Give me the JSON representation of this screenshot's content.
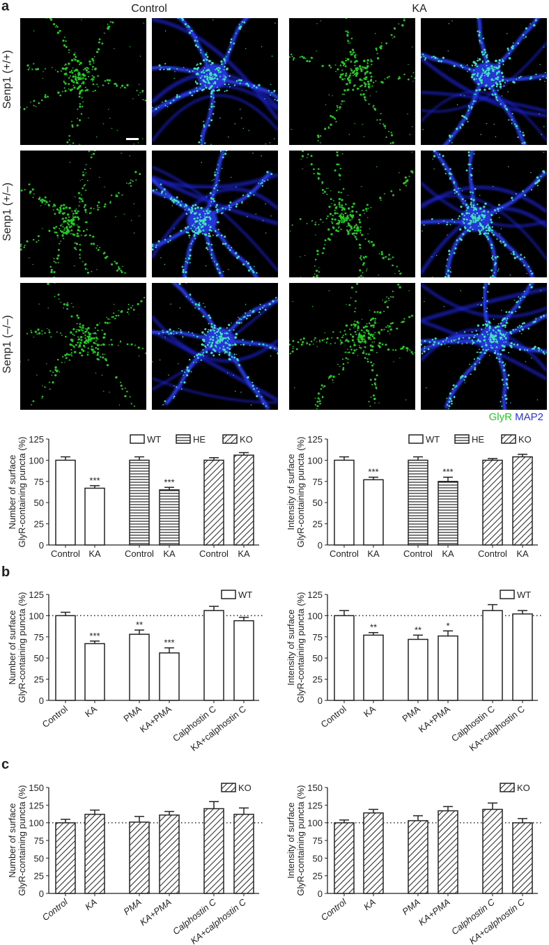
{
  "panel_labels": {
    "a": "a",
    "b": "b",
    "c": "c"
  },
  "column_headers": [
    "Control",
    "KA"
  ],
  "row_labels": [
    "Senp1 (+/+)",
    "Senp1 (+/–)",
    "Senp1 (–/–)"
  ],
  "channel_legend": {
    "glyr": "GlyR",
    "map2": "MAP2",
    "glyr_color": "#22cc22",
    "map2_color": "#2233ff"
  },
  "chart_data": [
    {
      "type": "bar",
      "panel": "a",
      "ylabel": [
        "Number of surface",
        "GlyR-containing puncta (%)"
      ],
      "ylim": [
        0,
        125
      ],
      "yticks": [
        0,
        25,
        50,
        75,
        100,
        125
      ],
      "categories": [
        "Control",
        "KA",
        "Control",
        "KA",
        "Control",
        "KA"
      ],
      "groups": [
        "WT",
        "WT",
        "HE",
        "HE",
        "KO",
        "KO"
      ],
      "values": [
        100,
        67,
        100,
        65,
        100,
        106
      ],
      "errors": [
        4,
        3,
        4,
        3,
        3,
        3
      ],
      "significance": [
        "",
        "***",
        "",
        "***",
        "",
        ""
      ],
      "legend": [
        "WT",
        "HE",
        "KO"
      ],
      "reference_line": null
    },
    {
      "type": "bar",
      "panel": "a",
      "ylabel": [
        "Intensity of surface",
        "GlyR-containing puncta (%)"
      ],
      "ylim": [
        0,
        125
      ],
      "yticks": [
        0,
        25,
        50,
        75,
        100,
        125
      ],
      "categories": [
        "Control",
        "KA",
        "Control",
        "KA",
        "Control",
        "KA"
      ],
      "groups": [
        "WT",
        "WT",
        "HE",
        "HE",
        "KO",
        "KO"
      ],
      "values": [
        100,
        77,
        100,
        75,
        100,
        104
      ],
      "errors": [
        4,
        3,
        4,
        5,
        2,
        3
      ],
      "significance": [
        "",
        "***",
        "",
        "***",
        "",
        ""
      ],
      "legend": [
        "WT",
        "HE",
        "KO"
      ],
      "reference_line": null
    },
    {
      "type": "bar",
      "panel": "b",
      "ylabel": [
        "Number of surface",
        "GlyR-containing puncta (%)"
      ],
      "ylim": [
        0,
        125
      ],
      "yticks": [
        0,
        25,
        50,
        75,
        100,
        125
      ],
      "categories": [
        "Control",
        "KA",
        "PMA",
        "KA+PMA",
        "Calphostin C",
        "KA+calphostin C"
      ],
      "groups": [
        "WT",
        "WT",
        "WT",
        "WT",
        "WT",
        "WT"
      ],
      "values": [
        100,
        67,
        78,
        56,
        106,
        94
      ],
      "errors": [
        4,
        3,
        5,
        6,
        5,
        4
      ],
      "significance": [
        "",
        "***",
        "**",
        "***",
        "",
        ""
      ],
      "legend": [
        "WT"
      ],
      "reference_line": 100
    },
    {
      "type": "bar",
      "panel": "b",
      "ylabel": [
        "Intensity of surface",
        "GlyR-containing puncta (%)"
      ],
      "ylim": [
        0,
        125
      ],
      "yticks": [
        0,
        25,
        50,
        75,
        100,
        125
      ],
      "categories": [
        "Control",
        "KA",
        "PMA",
        "KA+PMA",
        "Calphostin C",
        "KA+calphostin C"
      ],
      "groups": [
        "WT",
        "WT",
        "WT",
        "WT",
        "WT",
        "WT"
      ],
      "values": [
        100,
        77,
        72,
        76,
        106,
        102
      ],
      "errors": [
        6,
        3,
        5,
        6,
        7,
        4
      ],
      "significance": [
        "",
        "**",
        "**",
        "*",
        "",
        ""
      ],
      "legend": [
        "WT"
      ],
      "reference_line": 100
    },
    {
      "type": "bar",
      "panel": "c",
      "ylabel": [
        "Number of surface",
        "GlyR-containing puncta (%)"
      ],
      "ylim": [
        0,
        150
      ],
      "yticks": [
        0,
        25,
        50,
        75,
        100,
        125,
        150
      ],
      "categories": [
        "Control",
        "KA",
        "PMA",
        "KA+PMA",
        "Calphostin C",
        "KA+calphostin C"
      ],
      "groups": [
        "KO",
        "KO",
        "KO",
        "KO",
        "KO",
        "KO"
      ],
      "values": [
        100,
        112,
        101,
        111,
        120,
        112
      ],
      "errors": [
        5,
        6,
        8,
        5,
        10,
        9
      ],
      "significance": [
        "",
        "",
        "",
        "",
        "",
        ""
      ],
      "legend": [
        "KO"
      ],
      "reference_line": 100
    },
    {
      "type": "bar",
      "panel": "c",
      "ylabel": [
        "Intensity of surface",
        "GlyR-containing puncta (%)"
      ],
      "ylim": [
        0,
        150
      ],
      "yticks": [
        0,
        25,
        50,
        75,
        100,
        125,
        150
      ],
      "categories": [
        "Control",
        "KA",
        "PMA",
        "KA+PMA",
        "Calphostin C",
        "KA+calphostin C"
      ],
      "groups": [
        "KO",
        "KO",
        "KO",
        "KO",
        "KO",
        "KO"
      ],
      "values": [
        100,
        114,
        103,
        117,
        119,
        100
      ],
      "errors": [
        4,
        5,
        7,
        6,
        9,
        6
      ],
      "significance": [
        "",
        "",
        "",
        "",
        "",
        ""
      ],
      "legend": [
        "KO"
      ],
      "reference_line": 100
    }
  ]
}
